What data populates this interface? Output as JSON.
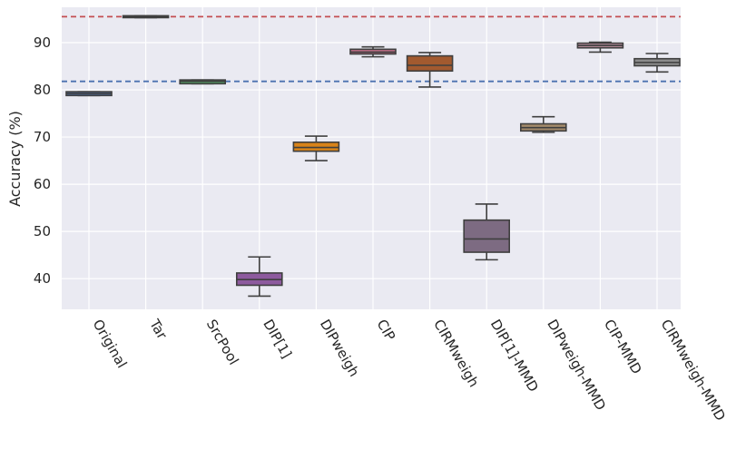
{
  "chart_data": {
    "type": "box",
    "title": "",
    "xlabel": "",
    "ylabel": "Accuracy (%)",
    "ylim": [
      33.5,
      97.5
    ],
    "yticks": [
      40,
      50,
      60,
      70,
      80,
      90
    ],
    "grid": true,
    "categories": [
      "Original",
      "Tar",
      "SrcPool",
      "DIP[1]",
      "DIPweigh",
      "CIP",
      "CIRMweigh",
      "DIP[1]-MMD",
      "DIPweigh-MMD",
      "CIP-MMD",
      "CIRMweigh-MMD"
    ],
    "boxes": [
      {
        "label": "Original",
        "whisker_low": 78.8,
        "q1": 78.8,
        "median": 79.2,
        "q3": 79.6,
        "whisker_high": 79.6,
        "color": "#4c72b0"
      },
      {
        "label": "Tar",
        "whisker_low": 95.3,
        "q1": 95.3,
        "median": 95.5,
        "q3": 95.7,
        "whisker_high": 95.7,
        "color": "#dd8452"
      },
      {
        "label": "SrcPool",
        "whisker_low": 81.3,
        "q1": 81.3,
        "median": 81.8,
        "q3": 82.1,
        "whisker_high": 82.1,
        "color": "#55a868"
      },
      {
        "label": "DIP[1]",
        "whisker_low": 36.3,
        "q1": 38.6,
        "median": 39.8,
        "q3": 41.2,
        "whisker_high": 44.6,
        "color": "#8d5a9e"
      },
      {
        "label": "DIPweigh",
        "whisker_low": 65.0,
        "q1": 67.0,
        "median": 67.8,
        "q3": 68.9,
        "whisker_high": 70.2,
        "color": "#d98319"
      },
      {
        "label": "CIP",
        "whisker_low": 87.0,
        "q1": 87.6,
        "median": 88.0,
        "q3": 88.6,
        "whisker_high": 89.1,
        "color": "#c06d86"
      },
      {
        "label": "CIRMweigh",
        "whisker_low": 80.6,
        "q1": 84.0,
        "median": 85.2,
        "q3": 87.2,
        "whisker_high": 87.9,
        "color": "#a25a2f"
      },
      {
        "label": "DIP[1]-MMD",
        "whisker_low": 44.0,
        "q1": 45.6,
        "median": 48.4,
        "q3": 52.4,
        "whisker_high": 55.8,
        "color": "#7d6b82"
      },
      {
        "label": "DIPweigh-MMD",
        "whisker_low": 71.0,
        "q1": 71.3,
        "median": 72.0,
        "q3": 72.8,
        "whisker_high": 74.3,
        "color": "#a48b6b"
      },
      {
        "label": "CIP-MMD",
        "whisker_low": 88.0,
        "q1": 88.9,
        "median": 89.4,
        "q3": 89.9,
        "whisker_high": 90.1,
        "color": "#b98c9c"
      },
      {
        "label": "CIRMweigh-MMD",
        "whisker_low": 83.8,
        "q1": 85.1,
        "median": 85.8,
        "q3": 86.6,
        "whisker_high": 87.7,
        "color": "#8c8c8c"
      }
    ],
    "reference_lines": [
      {
        "name": "target-reference-line",
        "y": 95.5,
        "color": "#c44e52",
        "style": "dashed"
      },
      {
        "name": "srcpool-reference-line",
        "y": 81.8,
        "color": "#4c72b0",
        "style": "dashed"
      }
    ]
  }
}
